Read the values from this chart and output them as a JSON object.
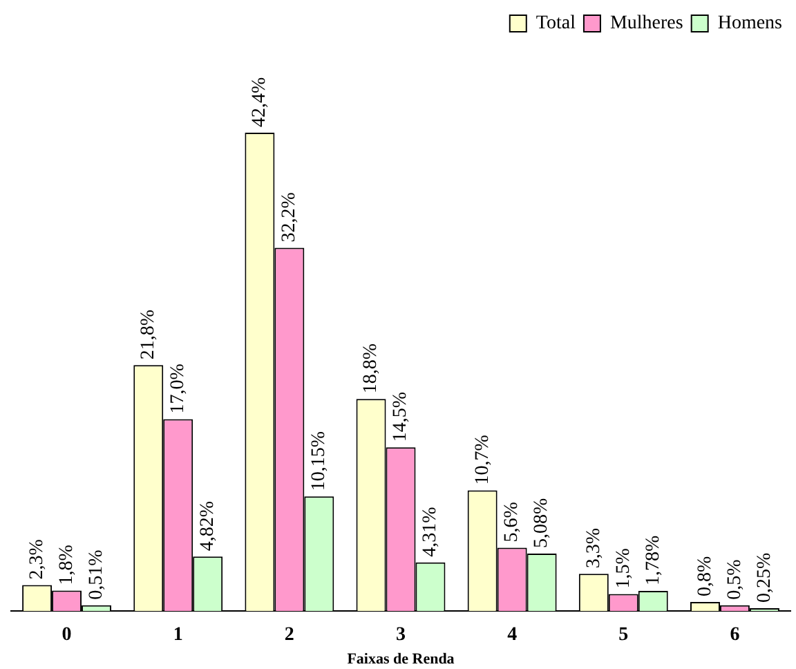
{
  "chart_data": {
    "type": "bar",
    "xlabel": "Faixas de Renda",
    "categories": [
      "0",
      "1",
      "2",
      "3",
      "4",
      "5",
      "6"
    ],
    "series": [
      {
        "name": "Total",
        "color": "#ffffcc",
        "values": [
          2.3,
          21.8,
          42.4,
          18.8,
          10.7,
          3.3,
          0.8
        ],
        "value_labels": [
          "2,3%",
          "21,8%",
          "42,4%",
          "18,8%",
          "10,7%",
          "3,3%",
          "0,8%"
        ]
      },
      {
        "name": "Mulheres",
        "color": "#ff99cc",
        "values": [
          1.8,
          17.0,
          32.2,
          14.5,
          5.6,
          1.5,
          0.5
        ],
        "value_labels": [
          "1,8%",
          "17,0%",
          "32,2%",
          "14,5%",
          "5,6%",
          "1,5%",
          "0,5%"
        ]
      },
      {
        "name": "Homens",
        "color": "#ccffcc",
        "values": [
          0.51,
          4.82,
          10.15,
          4.31,
          5.08,
          1.78,
          0.25
        ],
        "value_labels": [
          "0,51%",
          "4,82%",
          "10,15%",
          "4,31%",
          "5,08%",
          "1,78%",
          "0,25%"
        ]
      }
    ],
    "legend": "top right",
    "grid": false
  }
}
